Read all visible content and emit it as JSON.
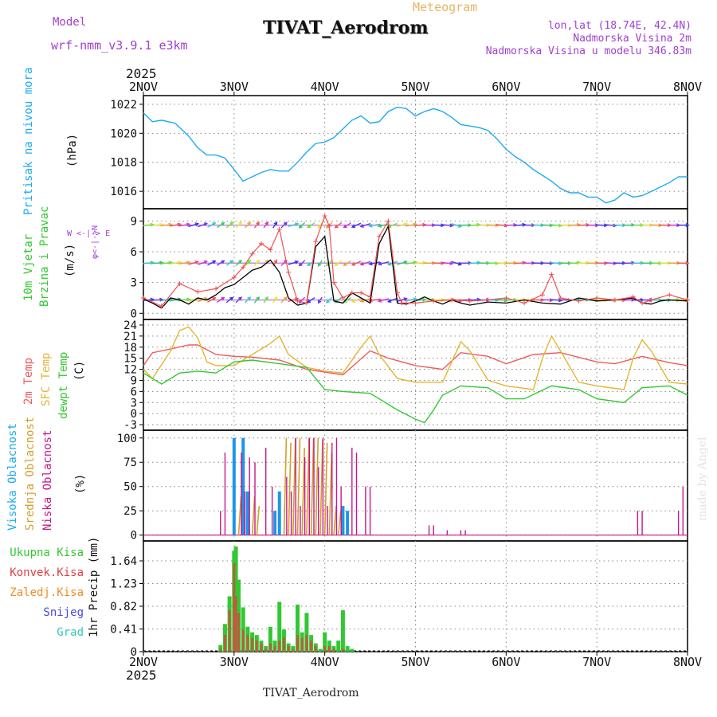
{
  "header": {
    "model_label": "Model",
    "model_name": "wrf-nmm_v3.9.1 e3km",
    "title": "TIVAT_Aerodrom",
    "chart_kind": "Meteogram",
    "coords": "lon,lat (18.74E, 42.4N)",
    "altitude": "Nadmorska Visina 2m",
    "model_altitude": "Nadmorska Visina u modelu 346.83m",
    "watermark": "made by Angel",
    "footer_title": "TIVAT_Aerodrom"
  },
  "colors": {
    "pressure": "#1eaaf0",
    "temp2m": "#f05a5a",
    "sfc_temp": "#e6b432",
    "dewpt": "#32c832",
    "wind_speed": "#000000",
    "gust": "#f05050",
    "purple": "#a040d0",
    "high_cloud": "#1e96e6",
    "mid_cloud": "#d2a028",
    "low_cloud": "#c8148c",
    "total_precip": "#32c832",
    "conv_precip": "#e04040",
    "frozen": "#f08c28",
    "snow": "#4646e6",
    "hail": "#32c8b4"
  },
  "chart_data": [
    {
      "type": "line",
      "title": "Pritisak na nivou mora",
      "ylabel": "(hPa)",
      "ylim": [
        1014.8,
        1022.6
      ],
      "yticks": [
        "1016",
        "1018",
        "1020",
        "1022"
      ],
      "x": [
        0,
        0.1,
        0.2,
        0.35,
        0.5,
        0.6,
        0.7,
        0.8,
        0.9,
        1.0,
        1.1,
        1.2,
        1.3,
        1.4,
        1.5,
        1.6,
        1.7,
        1.8,
        1.9,
        2.0,
        2.1,
        2.2,
        2.3,
        2.4,
        2.5,
        2.6,
        2.7,
        2.8,
        2.9,
        3.0,
        3.1,
        3.2,
        3.3,
        3.4,
        3.5,
        3.6,
        3.7,
        3.8,
        3.9,
        4.0,
        4.1,
        4.2,
        4.3,
        4.4,
        4.5,
        4.6,
        4.7,
        4.8,
        4.9,
        5.0,
        5.1,
        5.2,
        5.3,
        5.4,
        5.5,
        5.6,
        5.7,
        5.8,
        5.9,
        6.0
      ],
      "values": [
        1021.4,
        1020.8,
        1020.9,
        1020.7,
        1019.8,
        1019.0,
        1018.5,
        1018.5,
        1018.3,
        1017.5,
        1016.7,
        1017.0,
        1017.3,
        1017.5,
        1017.4,
        1017.4,
        1018.0,
        1018.7,
        1019.3,
        1019.4,
        1019.7,
        1020.3,
        1020.9,
        1021.2,
        1020.7,
        1020.8,
        1021.5,
        1021.8,
        1021.7,
        1021.2,
        1021.5,
        1021.7,
        1021.5,
        1021.1,
        1020.6,
        1020.5,
        1020.4,
        1020.2,
        1019.6,
        1018.9,
        1018.4,
        1018.0,
        1017.5,
        1017.1,
        1016.7,
        1016.2,
        1015.9,
        1015.9,
        1015.6,
        1015.6,
        1015.2,
        1015.4,
        1015.9,
        1015.6,
        1015.7,
        1016.0,
        1016.3,
        1016.6,
        1017.0,
        1017.0
      ]
    },
    {
      "type": "line",
      "title": "10m Vjetar Brzina i Pravac",
      "ylabel": "(m/s)",
      "ylim": [
        -0.6,
        10.2
      ],
      "yticks": [
        "0",
        "3",
        "6",
        "9"
      ],
      "legend": "W <-|-> E, φ <-|-> N",
      "series": [
        {
          "name": "wind speed",
          "x": [
            0,
            0.1,
            0.2,
            0.3,
            0.4,
            0.5,
            0.6,
            0.7,
            0.8,
            0.9,
            1.0,
            1.1,
            1.2,
            1.3,
            1.4,
            1.5,
            1.6,
            1.7,
            1.8,
            1.9,
            2.0,
            2.1,
            2.2,
            2.3,
            2.4,
            2.5,
            2.6,
            2.7,
            2.8,
            2.9,
            3.0,
            3.1,
            3.2,
            3.3,
            3.4,
            3.5,
            3.6,
            3.8,
            4.0,
            4.2,
            4.4,
            4.6,
            4.8,
            5.0,
            5.2,
            5.4,
            5.5,
            5.6,
            5.7,
            5.8,
            6.0
          ],
          "values": [
            1.4,
            1.0,
            0.5,
            1.5,
            1.3,
            0.9,
            1.5,
            1.3,
            1.8,
            2.5,
            2.8,
            3.5,
            4.2,
            4.5,
            5.2,
            4.0,
            1.5,
            0.8,
            1.0,
            6.5,
            7.5,
            1.2,
            1.0,
            2.0,
            1.5,
            1.0,
            6.8,
            8.5,
            1.0,
            0.9,
            1.2,
            1.6,
            1.2,
            0.9,
            1.3,
            1.0,
            0.8,
            1.1,
            1.0,
            1.3,
            1.0,
            0.9,
            1.5,
            1.2,
            1.3,
            1.5,
            1.0,
            0.9,
            1.2,
            1.3,
            1.2
          ]
        },
        {
          "name": "gust",
          "x": [
            0,
            0.2,
            0.4,
            0.6,
            0.8,
            1.0,
            1.1,
            1.2,
            1.3,
            1.4,
            1.5,
            1.6,
            1.7,
            1.8,
            1.9,
            2.0,
            2.05,
            2.1,
            2.2,
            2.3,
            2.4,
            2.5,
            2.6,
            2.7,
            2.8,
            2.85,
            2.9,
            3.0,
            3.2,
            3.4,
            3.6,
            3.8,
            4.0,
            4.2,
            4.4,
            4.5,
            4.6,
            4.8,
            5.0,
            5.2,
            5.4,
            5.5,
            5.6,
            5.8,
            6.0
          ],
          "values": [
            1.5,
            0.7,
            2.9,
            2.1,
            2.4,
            3.5,
            4.5,
            5.8,
            6.8,
            6.2,
            8.2,
            4.0,
            1.2,
            1.0,
            7.0,
            9.5,
            8.5,
            3.0,
            1.5,
            2.0,
            2.0,
            1.6,
            7.5,
            9.0,
            2.0,
            1.0,
            1.0,
            1.0,
            1.2,
            1.3,
            1.2,
            1.3,
            1.5,
            1.0,
            1.8,
            3.8,
            1.5,
            1.2,
            1.5,
            1.3,
            1.6,
            1.0,
            1.3,
            1.8,
            1.3
          ]
        }
      ],
      "arrow_rows_ms": [
        1.3,
        4.9,
        8.6
      ],
      "arrow_count": 60,
      "arrow_dir_deg": [
        78,
        80,
        75,
        70,
        72,
        60,
        55,
        45,
        40,
        35,
        30,
        28,
        25,
        22,
        20,
        30,
        60,
        210,
        220,
        200,
        210,
        215,
        220,
        230,
        240,
        250,
        245,
        235,
        60,
        70,
        80,
        90,
        95,
        100,
        120,
        90,
        80,
        90,
        95,
        100,
        85,
        80,
        90,
        92,
        95,
        100,
        95,
        80,
        85,
        90,
        95,
        100,
        92,
        85,
        88,
        90,
        95,
        92,
        90,
        90
      ]
    },
    {
      "type": "line",
      "title": "2m Temp / SFC Temp / dewpt Temp",
      "ylabel": "(C)",
      "ylim": [
        -4.5,
        25.5
      ],
      "yticks": [
        "-3",
        "0",
        "3",
        "6",
        "9",
        "12",
        "15",
        "18",
        "21",
        "24"
      ],
      "series": [
        {
          "name": "2m Temp",
          "x": [
            0,
            0.1,
            0.3,
            0.5,
            0.6,
            0.8,
            1.0,
            1.2,
            1.5,
            1.8,
            2.2,
            2.5,
            2.7,
            3.0,
            3.3,
            3.5,
            3.8,
            4.0,
            4.3,
            4.6,
            5.0,
            5.2,
            5.5,
            5.8,
            6.0
          ],
          "values": [
            13.0,
            16.5,
            17.5,
            18.6,
            18.6,
            16.0,
            15.5,
            15.3,
            14.5,
            12.0,
            10.5,
            17.0,
            15.0,
            13.0,
            12.0,
            16.5,
            15.5,
            13.5,
            16.0,
            16.5,
            14.0,
            13.5,
            15.5,
            13.8,
            13.0
          ]
        },
        {
          "name": "SFC Temp",
          "x": [
            0,
            0.1,
            0.3,
            0.4,
            0.5,
            0.6,
            0.7,
            0.8,
            1.0,
            1.2,
            1.4,
            1.5,
            1.6,
            1.8,
            2.0,
            2.2,
            2.4,
            2.5,
            2.6,
            2.8,
            3.0,
            3.3,
            3.4,
            3.5,
            3.6,
            3.8,
            4.0,
            4.3,
            4.4,
            4.5,
            4.6,
            4.8,
            5.0,
            5.3,
            5.4,
            5.5,
            5.6,
            5.8,
            6.0
          ],
          "values": [
            12.0,
            9.5,
            17.0,
            22.5,
            23.5,
            20.5,
            14.0,
            13.0,
            13.0,
            16.0,
            19.0,
            21.0,
            16.0,
            12.5,
            11.5,
            11.0,
            18.0,
            21.0,
            16.0,
            9.5,
            8.5,
            8.5,
            14.0,
            19.5,
            17.0,
            9.0,
            7.5,
            6.5,
            15.0,
            21.0,
            17.0,
            8.5,
            7.5,
            6.5,
            15.0,
            20.0,
            17.0,
            8.5,
            8.0
          ]
        },
        {
          "name": "dewpt Temp",
          "x": [
            0,
            0.2,
            0.3,
            0.4,
            0.6,
            0.8,
            1.0,
            1.2,
            1.5,
            1.8,
            2.0,
            2.2,
            2.5,
            2.8,
            3.0,
            3.1,
            3.2,
            3.3,
            3.5,
            3.8,
            4.0,
            4.2,
            4.5,
            4.8,
            5.0,
            5.3,
            5.5,
            5.8,
            6.0
          ],
          "values": [
            11.0,
            8.0,
            9.5,
            11.0,
            11.5,
            11.0,
            14.0,
            14.5,
            13.5,
            12.5,
            6.5,
            6.0,
            5.5,
            1.0,
            -1.5,
            -2.5,
            1.0,
            5.0,
            7.5,
            7.0,
            4.0,
            4.0,
            7.5,
            6.5,
            4.0,
            3.0,
            7.0,
            7.5,
            5.0
          ]
        }
      ]
    },
    {
      "type": "bar",
      "title": "Visoka / Srednja / Niska Oblacnost",
      "ylabel": "(%)",
      "ylim": [
        -6,
        108
      ],
      "yticks": [
        "0",
        "25",
        "50",
        "75",
        "100"
      ],
      "series": [
        {
          "name": "Visoka Oblacnost",
          "x": [
            1.0,
            1.1,
            1.15,
            1.45,
            1.5,
            2.2,
            2.25
          ],
          "values": [
            100,
            100,
            45,
            25,
            45,
            30,
            25
          ]
        },
        {
          "name": "Srednja Oblacnost",
          "x": [
            1.05,
            1.2,
            1.25,
            1.55,
            1.6,
            1.65,
            1.7,
            1.75,
            1.8,
            1.85,
            1.9,
            1.95,
            2.0,
            2.05,
            2.1,
            2.15
          ],
          "values": [
            40,
            40,
            30,
            100,
            95,
            100,
            100,
            90,
            100,
            100,
            100,
            98,
            95,
            85,
            30,
            25
          ]
        },
        {
          "name": "Niska Oblacnost",
          "x": [
            0.85,
            0.9,
            1.08,
            1.12,
            1.17,
            1.23,
            1.35,
            1.42,
            1.58,
            1.63,
            1.68,
            1.73,
            1.78,
            1.83,
            1.88,
            1.93,
            1.98,
            2.03,
            2.08,
            2.13,
            2.18,
            2.3,
            2.35,
            2.45,
            2.5,
            3.15,
            3.2,
            3.35,
            3.5,
            3.55,
            5.45,
            5.5,
            5.9,
            5.95
          ],
          "values": [
            25,
            85,
            85,
            45,
            80,
            75,
            90,
            50,
            60,
            45,
            100,
            30,
            80,
            100,
            100,
            70,
            100,
            30,
            95,
            100,
            50,
            90,
            85,
            50,
            50,
            10,
            10,
            5,
            5,
            5,
            25,
            25,
            25,
            50
          ]
        }
      ]
    },
    {
      "type": "bar",
      "title": "1hr Precip",
      "ylabel": "1hr Precip (mm)",
      "ylim": [
        0,
        2.0
      ],
      "yticks": [
        "0",
        "0.41",
        "0.82",
        "1.23",
        "1.64"
      ],
      "legend": [
        "Ukupna Kisa",
        "Konvek.Kisa",
        "Zaledj.Kisa",
        "Snijeg",
        "Grad"
      ],
      "series": [
        {
          "name": "Ukupna Kisa",
          "x": [
            0.85,
            0.9,
            0.95,
            1.0,
            1.02,
            1.05,
            1.1,
            1.15,
            1.2,
            1.25,
            1.3,
            1.35,
            1.4,
            1.45,
            1.5,
            1.55,
            1.6,
            1.65,
            1.7,
            1.75,
            1.8,
            1.85,
            1.9,
            1.95,
            2.0,
            2.05,
            2.1,
            2.15,
            2.2,
            2.25,
            2.3
          ],
          "values": [
            0.12,
            0.5,
            1.0,
            1.82,
            1.9,
            1.3,
            0.8,
            0.45,
            0.35,
            0.3,
            0.2,
            0.1,
            0.45,
            0.2,
            0.9,
            0.4,
            0.15,
            0.1,
            0.85,
            0.35,
            0.7,
            0.3,
            0.15,
            0.05,
            0.35,
            0.2,
            0.1,
            0.2,
            0.75,
            0.1,
            0.05
          ]
        },
        {
          "name": "Konvek.Kisa",
          "x": [
            0.85,
            0.9,
            0.95,
            1.0,
            1.02,
            1.05,
            1.1,
            1.15,
            1.2,
            1.25,
            1.3,
            1.35,
            1.4,
            1.45,
            1.5,
            1.55,
            1.6,
            1.65,
            1.7,
            1.75,
            1.8,
            1.85,
            1.9,
            1.95,
            2.0,
            2.05,
            2.1,
            2.15,
            2.2,
            2.25
          ],
          "values": [
            0.05,
            0.3,
            0.75,
            1.6,
            1.0,
            0.7,
            0.4,
            0.3,
            0.25,
            0.2,
            0.15,
            0.05,
            0.15,
            0.1,
            0.2,
            0.25,
            0.1,
            0.05,
            0.3,
            0.25,
            0.3,
            0.2,
            0.1,
            0.0,
            0.1,
            0.1,
            0.05,
            0.0,
            0.05,
            0.0
          ]
        }
      ]
    }
  ],
  "axes": {
    "year": "2025",
    "xticks": [
      "2NOV",
      "3NOV",
      "4NOV",
      "5NOV",
      "6NOV",
      "7NOV",
      "8NOV"
    ]
  },
  "panels": {
    "pressure": {
      "title": "Pritisak na nivou mora",
      "unit": "(hPa)"
    },
    "wind": {
      "title1": "10m Vjetar",
      "title2": "Brzina i Pravac",
      "unit": "(m/s)",
      "compass1": "W <-|-> E",
      "compass2": "φ<-|->N"
    },
    "temp": {
      "t1": "2m Temp",
      "t2": "SFC Temp",
      "t3": "dewpt Temp",
      "unit": "(C)"
    },
    "cloud": {
      "c1": "Visoka Oblacnost",
      "c2": "Srednja Oblacnost",
      "c3": "Niska Oblacnost",
      "unit": "(%)"
    },
    "precip": {
      "unit": "1hr Precip (mm)",
      "legend": [
        "Ukupna Kisa",
        "Konvek.Kisa",
        "Zaledj.Kisa",
        "Snijeg",
        "Grad"
      ]
    }
  }
}
